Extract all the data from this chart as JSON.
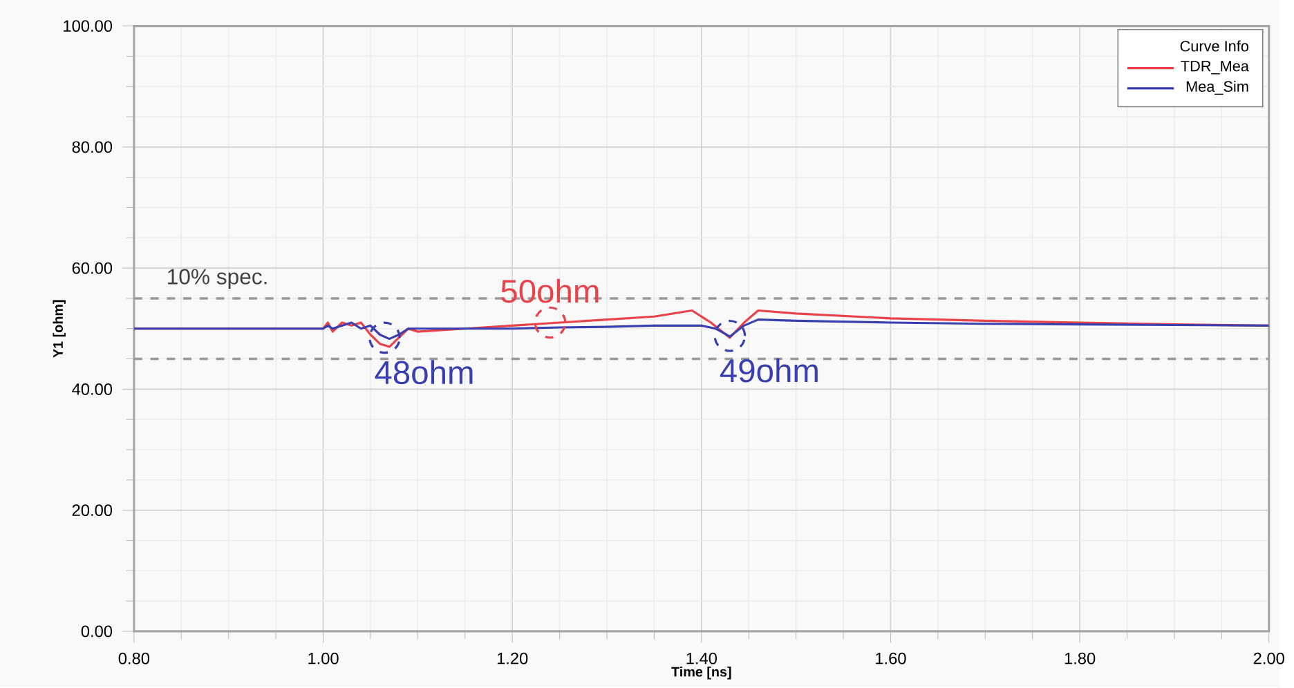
{
  "chart_data": {
    "type": "line",
    "xlabel": "Time [ns]",
    "ylabel": "Y1 [ohm]",
    "legend_title": "Curve Info",
    "xlim": [
      0.8,
      2.0
    ],
    "ylim": [
      0,
      100
    ],
    "xticks": [
      {
        "value": 0.8,
        "label": "0.80"
      },
      {
        "value": 1.0,
        "label": "1.00"
      },
      {
        "value": 1.2,
        "label": "1.20"
      },
      {
        "value": 1.4,
        "label": "1.40"
      },
      {
        "value": 1.6,
        "label": "1.60"
      },
      {
        "value": 1.8,
        "label": "1.80"
      },
      {
        "value": 2.0,
        "label": "2.00"
      }
    ],
    "yticks": [
      {
        "value": 0,
        "label": "0.00"
      },
      {
        "value": 20,
        "label": "20.00"
      },
      {
        "value": 40,
        "label": "40.00"
      },
      {
        "value": 60,
        "label": "60.00"
      },
      {
        "value": 80,
        "label": "80.00"
      },
      {
        "value": 100,
        "label": "100.00"
      }
    ],
    "grid": true,
    "legend": "top right",
    "marker": "none",
    "line_style": "solid",
    "series": [
      {
        "name": "TDR_Mea",
        "color": "#e8424a",
        "x": [
          0.8,
          1.0,
          1.005,
          1.01,
          1.02,
          1.03,
          1.04,
          1.05,
          1.06,
          1.07,
          1.08,
          1.09,
          1.1,
          1.15,
          1.2,
          1.25,
          1.3,
          1.35,
          1.39,
          1.41,
          1.43,
          1.445,
          1.46,
          1.5,
          1.6,
          1.7,
          1.8,
          1.9,
          2.0
        ],
        "values": [
          50,
          50,
          51,
          49.5,
          51,
          50.5,
          51,
          49,
          47.5,
          47,
          48.5,
          50,
          49.5,
          50,
          50.5,
          51,
          51.5,
          52,
          53,
          51,
          48.5,
          51,
          53,
          52.5,
          51.7,
          51.3,
          51,
          50.7,
          50.5
        ]
      },
      {
        "name": "Mea_Sim",
        "color": "#3a3fb0",
        "x": [
          0.8,
          1.0,
          1.005,
          1.01,
          1.02,
          1.03,
          1.04,
          1.05,
          1.06,
          1.07,
          1.08,
          1.09,
          1.1,
          1.15,
          1.2,
          1.25,
          1.3,
          1.35,
          1.4,
          1.415,
          1.43,
          1.445,
          1.46,
          1.5,
          1.6,
          1.7,
          1.8,
          1.9,
          2.0
        ],
        "values": [
          50,
          50,
          50.5,
          50,
          50.5,
          51,
          50,
          50.5,
          49,
          48.3,
          49,
          50,
          50,
          50,
          50,
          50.2,
          50.3,
          50.5,
          50.5,
          50,
          48.7,
          50.5,
          51.5,
          51.3,
          51,
          50.8,
          50.7,
          50.6,
          50.5
        ]
      }
    ],
    "ref_lines": [
      {
        "axis": "y",
        "value": 55,
        "label": "10% spec.",
        "color": "#999999",
        "line_style": "dashed"
      },
      {
        "axis": "y",
        "value": 45,
        "color": "#999999",
        "line_style": "dashed"
      }
    ],
    "annotations": [
      {
        "text": "50ohm",
        "x": 1.24,
        "y": 51
      },
      {
        "text": "48ohm",
        "x": 1.065,
        "y": 48.5
      },
      {
        "text": "49ohm",
        "x": 1.43,
        "y": 48.8
      }
    ]
  }
}
